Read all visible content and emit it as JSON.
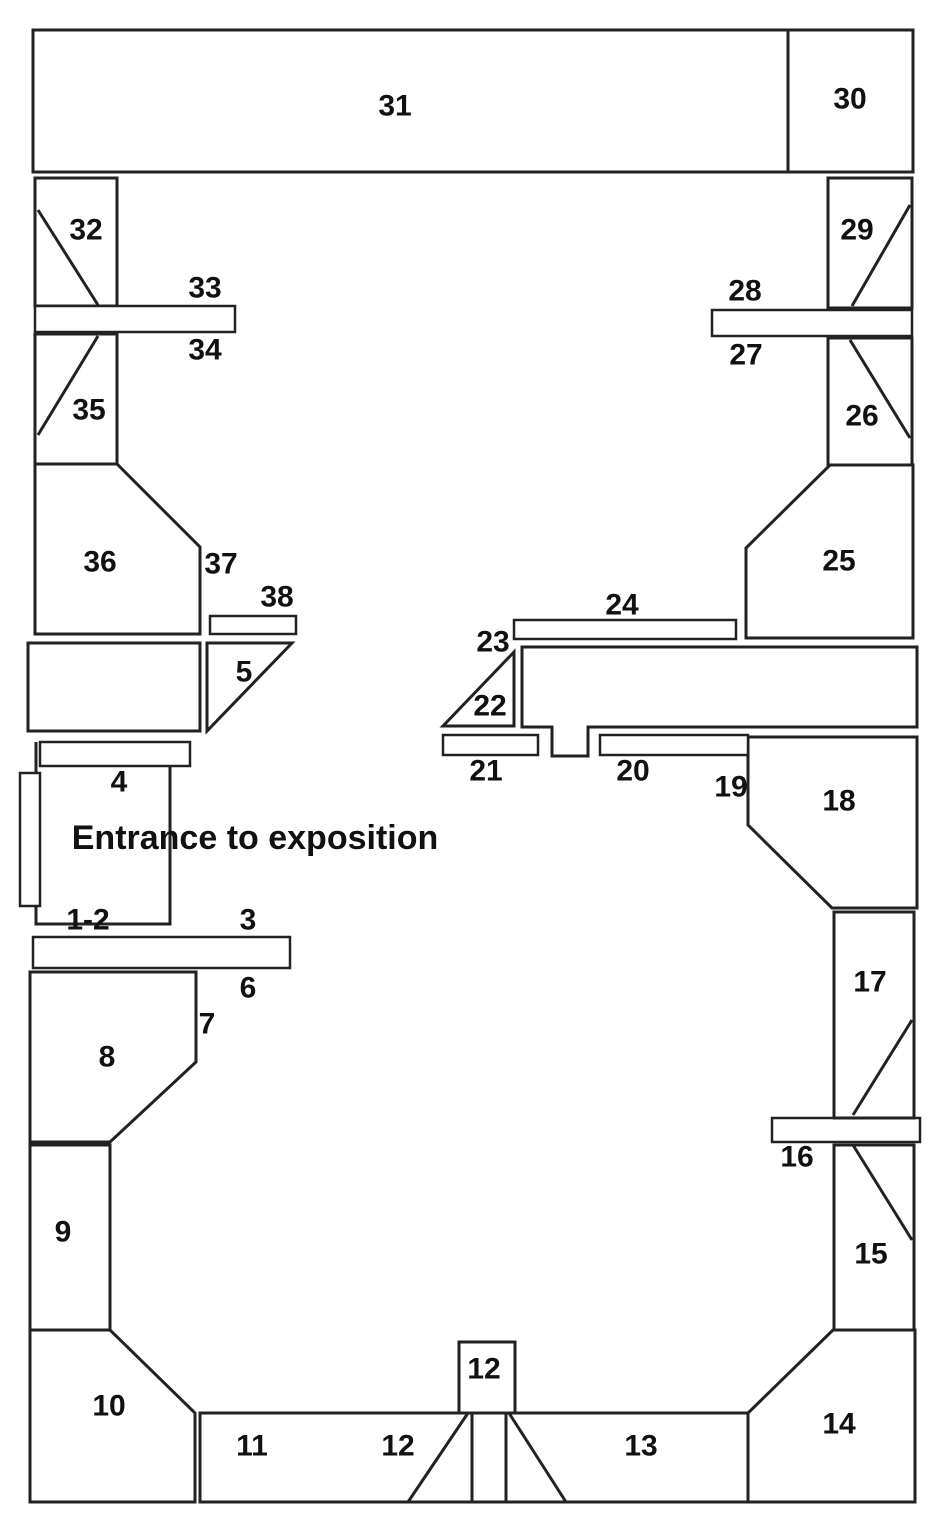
{
  "colors": {
    "stroke": "#222222",
    "fill": "#ffffff",
    "text": "#111111"
  },
  "entrance_label": "Entrance to exposition",
  "labels": {
    "l1_2": "1-2",
    "l3": "3",
    "l4": "4",
    "l5": "5",
    "l6": "6",
    "l7": "7",
    "l8": "8",
    "l9": "9",
    "l10": "10",
    "l11": "11",
    "l12a": "12",
    "l12b": "12",
    "l13": "13",
    "l14": "14",
    "l15": "15",
    "l16": "16",
    "l17": "17",
    "l18": "18",
    "l19": "19",
    "l20": "20",
    "l21": "21",
    "l22": "22",
    "l23": "23",
    "l24": "24",
    "l25": "25",
    "l26": "26",
    "l27": "27",
    "l28": "28",
    "l29": "29",
    "l30": "30",
    "l31": "31",
    "l32": "32",
    "l33": "33",
    "l34": "34",
    "l35": "35",
    "l36": "36",
    "l37": "37",
    "l38": "38"
  }
}
